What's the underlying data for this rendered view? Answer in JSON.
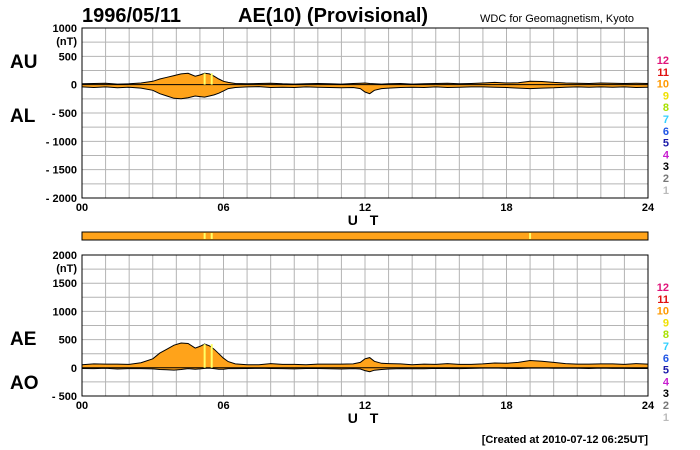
{
  "header": {
    "date": "1996/05/11",
    "title": "AE(10) (Provisional)",
    "source": "WDC for Geomagnetism, Kyoto"
  },
  "footer": {
    "created": "[Created at 2010-07-12 06:25UT]"
  },
  "colors": {
    "fill": "#ffa31a",
    "line": "#000000",
    "grid": "#b4b4b4",
    "highlight": "#ffff66"
  },
  "legend": [
    {
      "label": "12",
      "color": "#e0157a"
    },
    {
      "label": "11",
      "color": "#e01010"
    },
    {
      "label": "10",
      "color": "#ff9900"
    },
    {
      "label": "9",
      "color": "#f0e000"
    },
    {
      "label": "8",
      "color": "#a8e000"
    },
    {
      "label": "7",
      "color": "#33d0ff"
    },
    {
      "label": "6",
      "color": "#1f55e6"
    },
    {
      "label": "5",
      "color": "#1a1aa8"
    },
    {
      "label": "4",
      "color": "#c81ed0"
    },
    {
      "label": "3",
      "color": "#000000"
    },
    {
      "label": "2",
      "color": "#777777"
    },
    {
      "label": "1",
      "color": "#bbbbbb"
    }
  ],
  "strip": {
    "highlights_ut": [
      5.2,
      5.5,
      19.0
    ]
  },
  "chart_data": [
    {
      "type": "area",
      "name": "AU/AL",
      "upper_label": "AU",
      "lower_label": "AL",
      "unit_label": "(nT)",
      "xlabel": "U T",
      "xlim": [
        0,
        24
      ],
      "ylim": [
        -2000,
        1000
      ],
      "x_ticks": [
        "00",
        "06",
        "12",
        "18",
        "24"
      ],
      "y_ticks": [
        {
          "v": 1000,
          "t": "1000"
        },
        {
          "v": 500,
          "t": "500"
        },
        {
          "v": 0,
          "t": "0"
        },
        {
          "v": -500,
          "t": "- 500"
        },
        {
          "v": -1000,
          "t": "- 1000"
        },
        {
          "v": -1500,
          "t": "- 1500"
        },
        {
          "v": -2000,
          "t": "- 2000"
        }
      ],
      "x": [
        0,
        0.5,
        1,
        1.5,
        2,
        2.5,
        3,
        3.3,
        3.6,
        3.9,
        4.2,
        4.5,
        4.8,
        5.0,
        5.2,
        5.4,
        5.6,
        5.8,
        6.0,
        6.2,
        6.5,
        7,
        7.5,
        8,
        8.5,
        9,
        9.5,
        10,
        10.5,
        11,
        11.5,
        11.8,
        12.0,
        12.2,
        12.4,
        12.7,
        13,
        13.5,
        14,
        14.5,
        15,
        15.5,
        16,
        16.5,
        17,
        17.5,
        18,
        18.5,
        19,
        19.5,
        20,
        20.5,
        21,
        21.5,
        22,
        22.5,
        23,
        23.5,
        24
      ],
      "upper": [
        15,
        20,
        25,
        10,
        15,
        30,
        60,
        100,
        130,
        160,
        190,
        200,
        150,
        170,
        200,
        190,
        150,
        100,
        60,
        40,
        20,
        15,
        20,
        25,
        15,
        10,
        15,
        20,
        15,
        10,
        20,
        25,
        30,
        20,
        15,
        10,
        15,
        20,
        10,
        15,
        20,
        25,
        15,
        20,
        30,
        40,
        30,
        35,
        60,
        55,
        40,
        30,
        25,
        20,
        30,
        25,
        20,
        25,
        20
      ],
      "lower": [
        -40,
        -50,
        -40,
        -55,
        -45,
        -60,
        -100,
        -160,
        -200,
        -240,
        -250,
        -230,
        -200,
        -210,
        -220,
        -200,
        -180,
        -150,
        -110,
        -70,
        -50,
        -40,
        -35,
        -50,
        -45,
        -50,
        -40,
        -45,
        -50,
        -55,
        -50,
        -70,
        -130,
        -160,
        -100,
        -70,
        -60,
        -50,
        -45,
        -50,
        -40,
        -50,
        -45,
        -40,
        -40,
        -45,
        -50,
        -60,
        -70,
        -60,
        -55,
        -45,
        -40,
        -45,
        -40,
        -45,
        -40,
        -50,
        -45
      ]
    },
    {
      "type": "area",
      "name": "AE/AO",
      "upper_label": "AE",
      "lower_label": "AO",
      "unit_label": "(nT)",
      "xlabel": "U T",
      "xlim": [
        0,
        24
      ],
      "ylim": [
        -500,
        2000
      ],
      "x_ticks": [
        "00",
        "06",
        "12",
        "18",
        "24"
      ],
      "y_ticks": [
        {
          "v": 2000,
          "t": "2000"
        },
        {
          "v": 1500,
          "t": "1500"
        },
        {
          "v": 1000,
          "t": "1000"
        },
        {
          "v": 500,
          "t": "500"
        },
        {
          "v": 0,
          "t": "0"
        },
        {
          "v": -500,
          "t": "- 500"
        }
      ],
      "x": [
        0,
        0.5,
        1,
        1.5,
        2,
        2.5,
        3,
        3.3,
        3.6,
        3.9,
        4.2,
        4.5,
        4.8,
        5.0,
        5.2,
        5.4,
        5.6,
        5.8,
        6.0,
        6.2,
        6.5,
        7,
        7.5,
        8,
        8.5,
        9,
        9.5,
        10,
        10.5,
        11,
        11.5,
        11.8,
        12.0,
        12.2,
        12.4,
        12.7,
        13,
        13.5,
        14,
        14.5,
        15,
        15.5,
        16,
        16.5,
        17,
        17.5,
        18,
        18.5,
        19,
        19.5,
        20,
        20.5,
        21,
        21.5,
        22,
        22.5,
        23,
        23.5,
        24
      ],
      "upper": [
        55,
        70,
        65,
        65,
        60,
        90,
        160,
        260,
        330,
        400,
        440,
        430,
        350,
        380,
        420,
        390,
        330,
        250,
        170,
        110,
        70,
        55,
        55,
        75,
        60,
        60,
        55,
        65,
        65,
        65,
        70,
        95,
        160,
        180,
        115,
        80,
        75,
        70,
        55,
        65,
        60,
        75,
        60,
        60,
        70,
        85,
        80,
        95,
        130,
        115,
        95,
        75,
        65,
        65,
        70,
        70,
        60,
        75,
        65
      ],
      "lower": [
        -12,
        -15,
        -8,
        -22,
        -15,
        -15,
        -20,
        -30,
        -35,
        -40,
        -30,
        -15,
        -25,
        -20,
        -10,
        -5,
        -15,
        -25,
        -25,
        -15,
        -15,
        -12,
        -8,
        -12,
        -15,
        -20,
        -12,
        -12,
        -18,
        -22,
        -15,
        -22,
        -50,
        -70,
        -42,
        -30,
        -22,
        -15,
        -18,
        -18,
        -10,
        -12,
        -15,
        -10,
        -5,
        -3,
        -10,
        -12,
        -5,
        -3,
        -8,
        -8,
        -8,
        -12,
        -5,
        -10,
        -10,
        -12,
        -12
      ]
    }
  ]
}
